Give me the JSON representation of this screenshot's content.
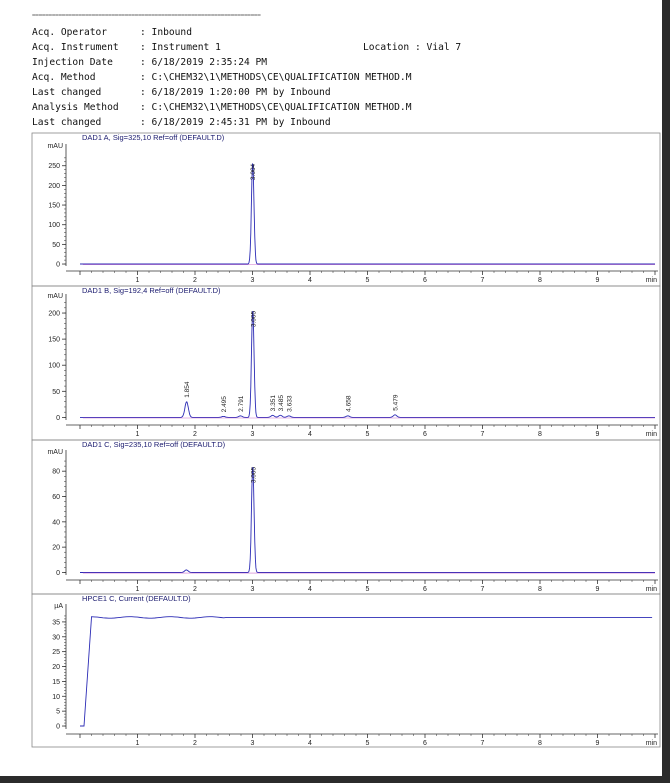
{
  "header": {
    "separator": "=====================================================================",
    "rows": [
      {
        "label": "Acq. Operator",
        "value": ": Inbound"
      },
      {
        "label": "Acq. Instrument",
        "value": ": Instrument 1"
      },
      {
        "label": "Injection Date",
        "value": ": 6/18/2019 2:35:24 PM"
      },
      {
        "label": "Acq. Method",
        "value": ": C:\\CHEM32\\1\\METHODS\\CE\\QUALIFICATION METHOD.M"
      },
      {
        "label": "Last changed",
        "value": ": 6/18/2019 1:20:00 PM by Inbound"
      },
      {
        "label": "Analysis Method",
        "value": ": C:\\CHEM32\\1\\METHODS\\CE\\QUALIFICATION METHOD.M"
      },
      {
        "label": "Last changed",
        "value": ": 6/18/2019 2:45:31 PM by Inbound"
      }
    ],
    "location_label": "Location",
    "location_value": ": Vial 7"
  },
  "colors": {
    "trace": "#2b2bb5",
    "baseline": "#c04cc0",
    "axis": "#333333",
    "frame": "#888888"
  },
  "chart_data": [
    {
      "type": "line",
      "title": "DAD1 A, Sig=325,10 Ref=off (DEFAULT.D)",
      "ylabel": "mAU",
      "xlabel": "min",
      "xlim": [
        0,
        10
      ],
      "ylim": [
        -5,
        290
      ],
      "yticks": [
        0,
        50,
        100,
        150,
        200,
        250
      ],
      "xticks": [
        1,
        2,
        3,
        4,
        5,
        6,
        7,
        8,
        9
      ],
      "peaks": [
        {
          "rt": 3.004,
          "height": 260,
          "label": "3.004"
        }
      ],
      "baseline": 0
    },
    {
      "type": "line",
      "title": "DAD1 B, Sig=192,4 Ref=off (DEFAULT.D)",
      "ylabel": "mAU",
      "xlabel": "min",
      "xlim": [
        0,
        10
      ],
      "ylim": [
        -5,
        225
      ],
      "yticks": [
        0,
        50,
        100,
        150,
        200
      ],
      "xticks": [
        1,
        2,
        3,
        4,
        5,
        6,
        7,
        8,
        9
      ],
      "peaks": [
        {
          "rt": 1.854,
          "height": 30,
          "label": "1.854"
        },
        {
          "rt": 2.495,
          "height": 2,
          "label": "2.495"
        },
        {
          "rt": 2.791,
          "height": 3,
          "label": "2.791"
        },
        {
          "rt": 3.005,
          "height": 208,
          "label": "3.005"
        },
        {
          "rt": 3.351,
          "height": 4,
          "label": "3.351"
        },
        {
          "rt": 3.485,
          "height": 4,
          "label": "3.485"
        },
        {
          "rt": 3.633,
          "height": 3,
          "label": "3.633"
        },
        {
          "rt": 4.658,
          "height": 3,
          "label": "4.658"
        },
        {
          "rt": 5.479,
          "height": 5,
          "label": "5.479"
        }
      ],
      "baseline": 0
    },
    {
      "type": "line",
      "title": "DAD1 C, Sig=235,10 Ref=off (DEFAULT.D)",
      "ylabel": "mAU",
      "xlabel": "min",
      "xlim": [
        0,
        10
      ],
      "ylim": [
        -2,
        92
      ],
      "yticks": [
        0,
        20,
        40,
        60,
        80
      ],
      "xticks": [
        1,
        2,
        3,
        4,
        5,
        6,
        7,
        8,
        9
      ],
      "peaks": [
        {
          "rt": 1.85,
          "height": 2,
          "label": ""
        },
        {
          "rt": 3.005,
          "height": 85,
          "label": "3.005"
        }
      ],
      "baseline": 0
    },
    {
      "type": "line",
      "title": "HPCE1 C, Current (DEFAULT.D)",
      "ylabel": "µA",
      "xlabel": "min",
      "xlim": [
        0,
        10
      ],
      "ylim": [
        -1,
        39
      ],
      "yticks": [
        0,
        5,
        10,
        15,
        20,
        25,
        30,
        35
      ],
      "xticks": [
        1,
        2,
        3,
        4,
        5,
        6,
        7,
        8,
        9
      ],
      "current": {
        "rise_start": 0.07,
        "rise_end": 0.2,
        "plateau": 36.5,
        "ripple_end": 2.5
      },
      "peaks": []
    }
  ]
}
